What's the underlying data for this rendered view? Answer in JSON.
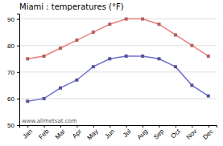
{
  "chart_data": {
    "type": "line",
    "title": "Miami : temperatures (°F)",
    "categories": [
      "Jan",
      "Feb",
      "Mar",
      "Apr",
      "May",
      "Jun",
      "Jul",
      "Aug",
      "Sep",
      "Oct",
      "Nov",
      "Dec"
    ],
    "series": [
      {
        "color": "#e88080",
        "marker": "square",
        "values": [
          75,
          76,
          79,
          82,
          85,
          88,
          90,
          90,
          88,
          84,
          80,
          76
        ]
      },
      {
        "color": "#7070cc",
        "marker": "square",
        "values": [
          59,
          60,
          64,
          67,
          72,
          75,
          76,
          76,
          75,
          72,
          65,
          61
        ]
      }
    ],
    "ylim": [
      50,
      92
    ],
    "yticks": [
      50,
      60,
      70,
      80,
      90
    ],
    "grid": true,
    "annotations": [
      "www.allmetsat.com"
    ]
  }
}
